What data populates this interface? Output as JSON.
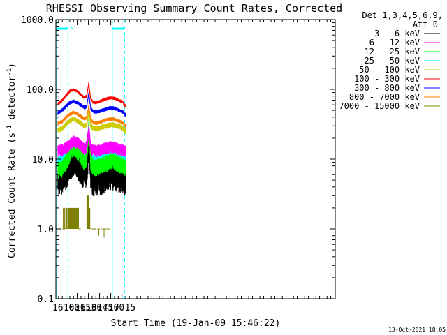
{
  "chart_data": {
    "type": "line",
    "title": "RHESSI Observing Summary Count Rates, Corrected",
    "xlabel": "Start Time (19-Jan-09 15:46:22)",
    "ylabel_main": "Corrected Count Rate (s",
    "ylabel_sup1": "-1",
    "ylabel_mid": " detector",
    "ylabel_sup2": "-1",
    "ylabel_end": ")",
    "yscale": "log",
    "ylim": [
      0.1,
      1000
    ],
    "y_ticks": [
      {
        "value": 0.1,
        "label": "0.1"
      },
      {
        "value": 1,
        "label": "1.0"
      },
      {
        "value": 10,
        "label": "10.0"
      },
      {
        "value": 100,
        "label": "100.0"
      },
      {
        "value": 1000,
        "label": "1000.0"
      }
    ],
    "x_unit": "minutes of day",
    "xlim": [
      946.37,
      1321
    ],
    "x_ticks": [
      {
        "value": 960,
        "label": "16:00"
      },
      {
        "value": 975,
        "label": "16:15"
      },
      {
        "value": 990,
        "label": "16:30"
      },
      {
        "value": 1005,
        "label": "16:45"
      },
      {
        "value": 1020,
        "label": "17:00"
      },
      {
        "value": 1035,
        "label": "17:15"
      }
    ],
    "legend_header": [
      "Det 1,3,4,5,6,9,",
      "Att 0"
    ],
    "legend_position": "right",
    "series": [
      {
        "name": "3 - 6 keV",
        "color": "#000000",
        "x": [
          949,
          955,
          960,
          965,
          970,
          975,
          980,
          985,
          988,
          989.5,
          990.5,
          991.5,
          993,
          996,
          1000,
          1005,
          1010,
          1015,
          1020,
          1025,
          1030,
          1036,
          1040
        ],
        "values": [
          5.3,
          5.6,
          6.6,
          8.6,
          10.2,
          9.3,
          7.6,
          6.2,
          6.8,
          11,
          21,
          14,
          6.4,
          5.2,
          5.1,
          5.3,
          5.6,
          6.2,
          6.5,
          6.4,
          6.0,
          5.6,
          5.2
        ]
      },
      {
        "name": "6 - 12 keV",
        "color": "#ff00ff",
        "x": [
          949,
          955,
          960,
          965,
          970,
          975,
          980,
          985,
          988,
          989.5,
          990.5,
          991.5,
          993,
          996,
          1000,
          1005,
          1010,
          1015,
          1020,
          1025,
          1030,
          1036,
          1040
        ],
        "values": [
          13.5,
          14,
          15,
          16.5,
          18.5,
          18,
          16,
          14.5,
          16,
          22,
          28,
          22,
          15,
          13.8,
          13.6,
          14,
          14.5,
          15,
          15.5,
          15,
          14.5,
          13.8,
          13.2
        ]
      },
      {
        "name": "12 - 25 keV",
        "color": "#00ff00",
        "x": [
          949,
          955,
          960,
          965,
          970,
          975,
          980,
          985,
          988,
          989.5,
          990.5,
          991.5,
          993,
          996,
          1000,
          1005,
          1010,
          1015,
          1020,
          1025,
          1030,
          1036,
          1040
        ],
        "values": [
          7.2,
          7.8,
          9.5,
          12.5,
          15.5,
          14,
          11.5,
          9.5,
          10.5,
          19,
          31,
          21,
          10,
          8.2,
          8.0,
          8.4,
          8.9,
          9.4,
          9.8,
          9.6,
          9.1,
          8.5,
          8.0
        ]
      },
      {
        "name": "25 - 50 keV",
        "color": "#00ffff",
        "x": [
          949,
          955,
          960,
          965,
          970,
          975,
          980,
          985,
          988,
          989.5,
          990.5,
          991.5,
          993,
          996,
          1000,
          1005,
          1010,
          1015,
          1020,
          1025,
          1030,
          1036,
          1040
        ],
        "values": [
          9.6,
          10.2,
          12.5,
          15.5,
          18.5,
          17,
          14.5,
          12.5,
          13.5,
          23,
          32,
          23,
          13,
          10.5,
          10.2,
          10.6,
          11,
          11.6,
          12,
          11.8,
          11.2,
          10.5,
          9.7
        ]
      },
      {
        "name": "50 - 100 keV",
        "color": "#cccc00",
        "x": [
          949,
          955,
          960,
          965,
          970,
          975,
          980,
          985,
          988,
          989.5,
          990.5,
          991.5,
          993,
          996,
          1000,
          1005,
          1010,
          1015,
          1020,
          1025,
          1030,
          1036,
          1040
        ],
        "values": [
          26,
          28,
          32,
          36,
          38,
          36,
          33,
          30,
          32,
          40,
          50,
          40,
          31,
          28,
          27.5,
          28.5,
          29.5,
          30.5,
          31.5,
          31,
          30,
          28,
          25
        ]
      },
      {
        "name": "100 - 300 keV",
        "color": "#ff0000",
        "x": [
          949,
          955,
          960,
          965,
          970,
          975,
          980,
          985,
          988,
          989.5,
          990.5,
          991.5,
          993,
          996,
          1000,
          1005,
          1010,
          1015,
          1020,
          1025,
          1030,
          1036,
          1040
        ],
        "values": [
          62,
          70,
          82,
          95,
          100,
          94,
          84,
          76,
          82,
          105,
          125,
          100,
          74,
          66,
          65,
          67,
          71,
          74,
          76,
          75,
          71,
          66,
          57
        ]
      },
      {
        "name": "300 - 800 keV",
        "color": "#0000ff",
        "x": [
          949,
          955,
          960,
          965,
          970,
          975,
          980,
          985,
          988,
          989.5,
          990.5,
          991.5,
          993,
          996,
          1000,
          1005,
          1010,
          1015,
          1020,
          1025,
          1030,
          1036,
          1040
        ],
        "values": [
          46,
          51,
          58,
          65,
          68,
          65,
          60,
          55,
          58,
          75,
          88,
          72,
          55,
          49,
          48,
          49,
          51,
          53,
          55,
          54,
          51,
          48,
          43
        ]
      },
      {
        "name": "800 - 7000 keV",
        "color": "#ff8000",
        "x": [
          949,
          955,
          960,
          965,
          970,
          975,
          980,
          985,
          988,
          989.5,
          990.5,
          991.5,
          993,
          996,
          1000,
          1005,
          1010,
          1015,
          1020,
          1025,
          1030,
          1036,
          1040
        ],
        "values": [
          33,
          35,
          40,
          44,
          47,
          45,
          41,
          38,
          40,
          50,
          60,
          49,
          38,
          34,
          33,
          34,
          35.5,
          37,
          38,
          37.5,
          35.5,
          33.5,
          30
        ]
      },
      {
        "name": "7000 - 15000 keV",
        "color": "#808000",
        "x": [],
        "values": []
      }
    ],
    "extra_series": [
      {
        "name": "7000 - 15000 keV",
        "color": "#808000",
        "kind": "steps",
        "segments": [
          {
            "x0": 956,
            "x1": 977,
            "values": [
              1.0,
              2.0
            ]
          },
          {
            "x0": 988,
            "x1": 991,
            "values": [
              1.0,
              3.0
            ]
          },
          {
            "x0": 991,
            "x1": 992.5,
            "values": [
              1.0,
              2.0
            ]
          }
        ],
        "baseline": [
          {
            "x0": 955,
            "x1": 959
          },
          {
            "x0": 977,
            "x1": 980
          },
          {
            "x0": 992.5,
            "x1": 1000
          },
          {
            "x0": 1002,
            "x1": 1005
          },
          {
            "x0": 1007,
            "x1": 1018
          }
        ],
        "dips": [
          {
            "x": 1004,
            "value": 0.8
          },
          {
            "x": 1011,
            "value": 0.75
          }
        ]
      },
      {
        "name": "attenuator-marker",
        "color": "#00ffff",
        "kind": "markers",
        "night_bars": [
          {
            "x0": 946.37,
            "x1": 962.5
          },
          {
            "x0": 1022,
            "x1": 1038
          }
        ],
        "solid_lines": [
          947.5,
          1022
        ],
        "dashed_lines": [
          962.5,
          1038.5
        ],
        "flag_label": "N",
        "flag_x": 963.5
      }
    ]
  },
  "footer": {
    "date_stamp": "13-Oct-2021 18:05"
  },
  "colors": {
    "axis": "#000000",
    "marker": "#00ffff"
  }
}
